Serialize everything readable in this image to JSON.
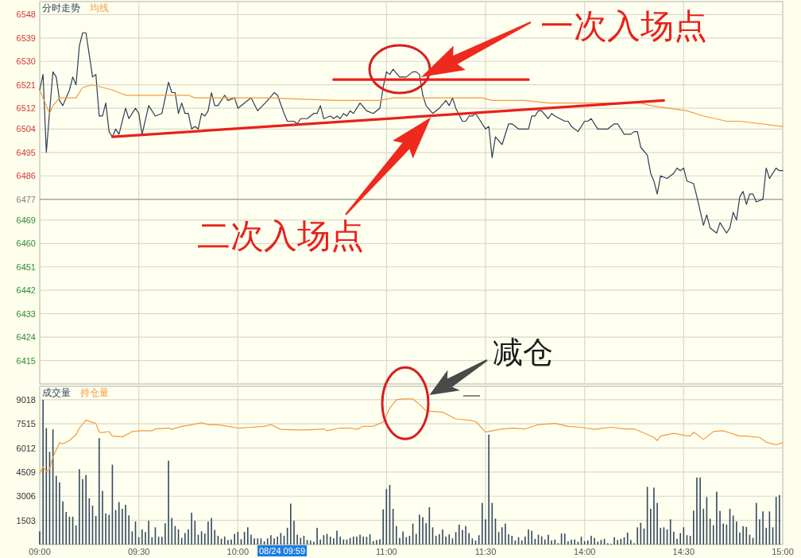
{
  "chart_data": [
    {
      "type": "line",
      "categories": [
        null,
        null,
        null,
        null,
        null,
        null,
        null,
        null,
        null,
        null,
        null,
        null,
        null,
        null,
        null,
        null,
        null,
        null,
        null,
        null,
        null,
        null,
        null,
        null,
        null,
        null,
        null,
        null,
        null,
        null,
        null,
        null,
        null,
        null,
        null,
        null,
        null,
        null,
        null,
        null,
        null,
        null,
        null,
        null,
        null,
        null,
        null,
        null,
        null,
        null,
        null,
        null,
        null,
        null,
        null,
        null,
        null,
        null,
        null,
        null,
        null,
        null,
        null,
        null,
        null,
        null,
        null,
        null,
        null,
        null,
        null,
        null,
        null,
        null,
        null,
        null,
        null,
        null,
        null,
        null,
        null,
        null,
        null,
        null,
        null,
        null,
        null,
        null,
        null,
        null,
        null,
        null,
        null,
        null,
        null,
        null,
        null,
        null,
        null,
        null,
        null,
        null,
        null,
        null,
        null,
        null,
        null,
        null,
        null,
        null,
        null,
        null,
        null,
        null,
        null,
        null,
        null,
        null,
        null,
        null,
        null,
        null,
        null,
        null,
        null,
        null,
        null,
        null,
        null,
        null,
        null,
        null,
        null,
        null,
        null,
        null,
        null,
        null,
        null,
        null,
        null,
        null,
        null,
        null,
        null,
        null,
        null,
        null,
        null,
        null,
        null,
        null,
        null,
        null,
        null,
        null,
        null,
        null,
        null,
        null,
        null,
        null,
        null,
        null,
        null,
        null,
        null,
        null,
        null,
        null,
        null,
        null,
        null,
        null,
        null,
        null,
        null,
        null,
        null,
        null,
        null,
        null,
        null,
        null,
        null,
        null,
        null,
        null,
        null,
        null,
        null,
        null,
        null,
        null,
        null,
        null,
        null,
        null,
        null,
        null,
        null,
        null,
        null,
        null,
        null,
        null,
        null,
        null,
        null,
        null,
        null,
        null,
        null,
        null,
        null,
        null,
        null,
        null,
        null,
        null,
        null,
        null,
        null,
        null,
        null,
        null
      ],
      "ylim": [
        6406,
        6553
      ],
      "yticks": [
        6415,
        6424,
        6433,
        6442,
        6451,
        6460,
        6469,
        6477,
        6486,
        6495,
        6504,
        6512,
        6521,
        6530,
        6539,
        6548
      ],
      "tick_labels": "y",
      "grid": true,
      "legend": "top left",
      "ref_lines": [
        {
          "axis": "y",
          "value": 6477,
          "color": "#a8a8a0"
        }
      ],
      "series": [
        {
          "name": "分时走势",
          "color": "#2c3e55",
          "values": [
            6519,
            6525,
            6495,
            6511,
            6526,
            6524,
            6515,
            6513,
            null,
            6519,
            6524,
            6521,
            6536,
            6541,
            6541,
            null,
            6524,
            6525,
            6509,
            6509,
            6514,
            6503,
            6501,
            6504,
            6502,
            null,
            6512,
            6508,
            null,
            6512,
            6510,
            6502,
            null,
            6513,
            null,
            6509,
            null,
            6510,
            null,
            6522,
            6518,
            6518,
            6510,
            6514,
            6510,
            6510,
            6504,
            6505,
            6504,
            6510,
            6509,
            6511,
            6518,
            6513,
            6513,
            null,
            6517,
            6515,
            null,
            6516,
            6512,
            null,
            null,
            null,
            6516,
            null,
            6511,
            null,
            null,
            6515,
            null,
            6518,
            6517,
            null,
            6510,
            6507,
            null,
            6507,
            6506,
            6508,
            null,
            6508,
            null,
            6510,
            6510,
            6513,
            6508,
            null,
            6509,
            6508,
            6509,
            6508,
            6510,
            6509,
            6511,
            6510,
            null,
            6514,
            null,
            6511,
            null,
            6510,
            null,
            6512,
            6520,
            6526,
            6525,
            6527,
            null,
            6524,
            6524,
            6524,
            null,
            6526,
            6526,
            6525,
            6517,
            6513,
            null,
            6510,
            null,
            6512,
            null,
            6515,
            6513,
            6516,
            6512,
            null,
            6507,
            6507,
            6509,
            6509,
            6510,
            6508,
            null,
            6504,
            6505,
            6493,
            6501,
            null,
            6498,
            null,
            6506,
            6506,
            null,
            6504,
            null,
            6504,
            6504,
            6509,
            6509,
            6511,
            6511,
            null,
            6508,
            6510,
            6509,
            null,
            null,
            6507,
            6507,
            6505,
            null,
            6503,
            null,
            6507,
            6507,
            6508,
            null,
            6504,
            6504,
            null,
            6504,
            null,
            6506,
            6506,
            null,
            6502,
            null,
            6502,
            6503,
            6503,
            6497,
            null,
            6494,
            6487,
            6484,
            6479,
            6486,
            null,
            6485,
            null,
            6487,
            6489,
            6488,
            6489,
            6484,
            null,
            6483,
            6478,
            null,
            6467,
            6471,
            6466,
            null,
            6464,
            6468,
            null,
            6464,
            6466,
            6472,
            6469,
            6478,
            6480,
            6475,
            6479,
            6479,
            6476,
            null,
            6477,
            6489,
            6485,
            null,
            6489,
            6488,
            6488
          ]
        },
        {
          "name": "均线",
          "color": "#f39a3d",
          "values": [
            6519,
            null,
            6513,
            6510,
            6513,
            null,
            6516,
            null,
            null,
            null,
            null,
            6516,
            null,
            6520,
            null,
            null,
            6521,
            null,
            null,
            6520,
            null,
            null,
            6519,
            null,
            null,
            null,
            6517,
            null,
            null,
            null,
            null,
            null,
            null,
            null,
            null,
            6517,
            null,
            null,
            null,
            null,
            null,
            null,
            null,
            null,
            null,
            6517,
            null,
            6516,
            null,
            null,
            null,
            null,
            null,
            null,
            null,
            null,
            null,
            null,
            null,
            null,
            null,
            null,
            null,
            null,
            null,
            null,
            null,
            null,
            null,
            6516,
            null,
            null,
            null,
            null,
            null,
            null,
            null,
            null,
            null,
            null,
            null,
            null,
            null,
            null,
            null,
            null,
            null,
            null,
            null,
            null,
            6515,
            null,
            null,
            null,
            null,
            null,
            null,
            null,
            null,
            null,
            null,
            null,
            null,
            6515,
            null,
            null,
            null,
            6516,
            null,
            null,
            null,
            null,
            null,
            null,
            6516,
            null,
            null,
            null,
            null,
            null,
            null,
            null,
            null,
            null,
            null,
            null,
            null,
            null,
            null,
            null,
            null,
            null,
            null,
            null,
            6516,
            null,
            null,
            6515,
            null,
            null,
            null,
            null,
            null,
            null,
            null,
            null,
            null,
            6515,
            null,
            null,
            null,
            null,
            null,
            null,
            6514,
            null,
            null,
            null,
            null,
            null,
            null,
            null,
            null,
            null,
            null,
            null,
            null,
            null,
            null,
            null,
            null,
            null,
            null,
            null,
            null,
            null,
            null,
            null,
            null,
            null,
            null,
            null,
            6514,
            null,
            null,
            6513,
            null,
            null,
            null,
            null,
            null,
            null,
            null,
            null,
            null,
            null,
            6511,
            null,
            null,
            null,
            null,
            6509,
            null,
            null,
            null,
            null,
            null,
            null,
            6507,
            null,
            null,
            null,
            6507,
            null,
            null,
            null,
            null,
            null,
            null,
            null,
            null,
            null,
            null,
            null,
            null,
            6505
          ]
        },
        {
          "type": "line",
          "color": "#e8211a",
          "values": [
            null,
            null,
            null,
            null,
            null,
            null,
            null,
            null,
            null,
            null,
            null,
            null,
            null,
            null,
            null,
            null,
            null,
            null,
            null,
            null,
            null,
            null,
            null,
            null,
            null,
            null,
            null,
            null,
            null,
            null,
            null,
            null,
            null,
            null,
            null,
            null,
            null,
            null,
            null,
            null,
            null,
            null,
            null,
            null,
            null,
            null,
            null,
            null,
            null,
            null,
            null,
            null,
            null,
            null,
            null,
            null,
            null,
            null,
            null,
            null,
            null,
            null,
            null,
            null,
            null,
            null,
            null,
            null,
            null,
            null,
            null,
            null,
            null,
            null,
            null,
            null,
            null,
            null,
            null,
            null,
            null,
            null,
            null,
            null,
            null,
            null,
            null,
            null,
            null,
            6523,
            null,
            null,
            null,
            null,
            null,
            null,
            null,
            null,
            null,
            null,
            null,
            null,
            null,
            null,
            null,
            null,
            null,
            null,
            null,
            null,
            null,
            null,
            null,
            null,
            null,
            null,
            null,
            null,
            null,
            null,
            null,
            null,
            null,
            null,
            null,
            null,
            null,
            null,
            null,
            null,
            null,
            null,
            null,
            null,
            null,
            null,
            null,
            null,
            null,
            null,
            null,
            null,
            null,
            null,
            null,
            null,
            null,
            null,
            6523,
            null,
            null,
            null,
            null,
            null,
            null,
            null,
            null,
            null,
            null,
            null,
            null,
            null,
            null,
            null,
            null,
            null,
            null,
            null,
            null,
            null,
            null,
            null,
            null,
            null,
            null,
            null,
            null,
            null,
            null,
            null,
            null,
            null,
            null,
            null,
            null,
            null,
            null,
            null,
            null,
            null,
            null,
            null,
            null,
            null,
            null,
            null,
            null,
            null,
            null,
            null,
            null,
            null,
            null,
            null,
            null,
            null,
            null,
            null,
            null,
            null,
            null,
            null,
            null,
            null,
            null,
            null,
            null,
            null,
            null,
            null,
            null,
            null,
            null,
            null,
            null,
            null
          ]
        },
        {
          "type": "line",
          "color": "#e8211a",
          "values": [
            null,
            null,
            null,
            null,
            null,
            null,
            null,
            null,
            null,
            null,
            null,
            null,
            null,
            null,
            null,
            null,
            null,
            null,
            null,
            null,
            null,
            null,
            6501,
            null,
            null,
            null,
            null,
            null,
            null,
            null,
            null,
            null,
            null,
            null,
            null,
            null,
            null,
            null,
            null,
            null,
            null,
            null,
            null,
            null,
            null,
            null,
            null,
            null,
            null,
            null,
            null,
            null,
            null,
            null,
            null,
            null,
            null,
            null,
            null,
            null,
            null,
            null,
            null,
            null,
            null,
            null,
            null,
            null,
            null,
            null,
            null,
            null,
            null,
            null,
            null,
            null,
            null,
            null,
            null,
            null,
            null,
            null,
            null,
            null,
            null,
            null,
            null,
            null,
            null,
            null,
            null,
            null,
            null,
            null,
            null,
            null,
            null,
            null,
            null,
            null,
            null,
            null,
            null,
            null,
            null,
            null,
            null,
            null,
            null,
            null,
            null,
            null,
            null,
            null,
            null,
            null,
            null,
            null,
            null,
            null,
            null,
            null,
            null,
            null,
            null,
            null,
            null,
            null,
            null,
            null,
            null,
            null,
            null,
            null,
            null,
            null,
            null,
            null,
            null,
            null,
            null,
            null,
            null,
            null,
            null,
            null,
            null,
            null,
            null,
            null,
            null,
            null,
            null,
            null,
            null,
            null,
            null,
            null,
            null,
            null,
            null,
            null,
            null,
            null,
            null,
            null,
            null,
            null,
            null,
            null,
            null,
            null,
            null,
            null,
            null,
            null,
            null,
            null,
            null,
            null,
            null,
            null,
            null,
            null,
            null,
            null,
            null,
            null,
            null,
            6515,
            null,
            null,
            null,
            null,
            null,
            null,
            null,
            null,
            null,
            null,
            null,
            null,
            null,
            null,
            null,
            null,
            null,
            null,
            null,
            null,
            null,
            null,
            null,
            null,
            null,
            null,
            null,
            null,
            null,
            null,
            null,
            null,
            null,
            null,
            null,
            null
          ]
        }
      ],
      "annotations": [
        "一次入场点",
        "二次入场点"
      ]
    },
    {
      "type": "bar",
      "categories": [
        "09:00",
        null,
        null,
        null,
        null,
        null,
        null,
        null,
        null,
        null,
        null,
        null,
        null,
        null,
        null,
        null,
        null,
        null,
        null,
        null,
        null,
        null,
        null,
        null,
        null,
        null,
        null,
        null,
        null,
        null,
        "09:30",
        null,
        null,
        null,
        null,
        null,
        null,
        null,
        null,
        null,
        null,
        null,
        null,
        null,
        null,
        null,
        null,
        null,
        null,
        null,
        null,
        null,
        null,
        null,
        null,
        null,
        null,
        null,
        null,
        null,
        "10:00",
        null,
        null,
        null,
        null,
        null,
        null,
        null,
        null,
        null,
        null,
        null,
        null,
        null,
        null,
        null,
        null,
        null,
        null,
        null,
        null,
        null,
        null,
        null,
        null,
        null,
        null,
        null,
        null,
        null,
        null,
        null,
        null,
        null,
        null,
        null,
        null,
        null,
        null,
        null,
        null,
        null,
        null,
        null,
        null,
        "11:00",
        null,
        null,
        null,
        null,
        null,
        null,
        null,
        null,
        null,
        null,
        null,
        null,
        null,
        null,
        null,
        null,
        null,
        null,
        null,
        null,
        null,
        null,
        null,
        null,
        null,
        null,
        null,
        null,
        null,
        "11:30",
        null,
        null,
        null,
        null,
        null,
        null,
        null,
        null,
        null,
        null,
        null,
        null,
        null,
        null,
        null,
        null,
        null,
        null,
        null,
        null,
        null,
        null,
        null,
        null,
        null,
        null,
        null,
        null,
        null,
        "14:00",
        null,
        null,
        null,
        null,
        null,
        null,
        null,
        null,
        null,
        null,
        null,
        null,
        null,
        null,
        null,
        null,
        null,
        null,
        null,
        null,
        null,
        null,
        null,
        null,
        null,
        null,
        null,
        null,
        null,
        "14:30",
        null,
        null,
        null,
        null,
        null,
        null,
        null,
        null,
        null,
        null,
        null,
        null,
        null,
        null,
        null,
        null,
        null,
        null,
        null,
        null,
        null,
        null,
        null,
        null,
        null,
        null,
        null,
        null,
        null,
        "15:00"
      ],
      "ylim": [
        0,
        9850
      ],
      "yticks": [
        1503,
        3006,
        4509,
        6012,
        7515,
        9018
      ],
      "grid": true,
      "legend": "top left",
      "series": [
        {
          "name": "成交量",
          "color": "#34495e",
          "values": [
            820,
            9010,
            7250,
            5770,
            7170,
            4280,
            3870,
            2690,
            2030,
            1730,
            1730,
            1190,
            4690,
            4070,
            4330,
            2880,
            2420,
            1780,
            6620,
            3340,
            1930,
            1850,
            4970,
            2140,
            2640,
            2220,
            2470,
            1810,
            820,
            1430,
            450,
            940,
            770,
            1480,
            450,
            1070,
            480,
            480,
            1320,
            5220,
            1650,
            1150,
            940,
            410,
            710,
            940,
            1980,
            1480,
            610,
            820,
            680,
            1430,
            1650,
            910,
            540,
            360,
            490,
            280,
            310,
            660,
            790,
            330,
            790,
            1070,
            610,
            380,
            380,
            380,
            200,
            380,
            580,
            380,
            490,
            710,
            540,
            1040,
            2550,
            1480,
            610,
            410,
            540,
            280,
            250,
            170,
            1040,
            310,
            580,
            660,
            490,
            380,
            860,
            490,
            310,
            310,
            410,
            490,
            490,
            610,
            490,
            480,
            640,
            210,
            280,
            330,
            2190,
            3460,
            3710,
            2220,
            1150,
            410,
            810,
            450,
            540,
            1300,
            660,
            1860,
            1700,
            1330,
            2320,
            1070,
            540,
            640,
            940,
            490,
            630,
            380,
            770,
            1240,
            910,
            1150,
            710,
            380,
            250,
            580,
            2590,
            1570,
            6840,
            2590,
            1610,
            770,
            1070,
            1300,
            640,
            540,
            250,
            450,
            250,
            490,
            940,
            860,
            350,
            610,
            510,
            310,
            610,
            250,
            310,
            80,
            680,
            680,
            200,
            300,
            310,
            170,
            480,
            210,
            250,
            540,
            410,
            180,
            280,
            350,
            80,
            50,
            450,
            280,
            350,
            450,
            740,
            280,
            80,
            1070,
            1350,
            990,
            3590,
            2220,
            3540,
            2590,
            1040,
            1070,
            940,
            1570,
            790,
            350,
            710,
            1070,
            580,
            540,
            2110,
            4170,
            4170,
            2220,
            2950,
            1610,
            1200,
            3290,
            2090,
            1300,
            1240,
            2220,
            1810,
            1430,
            740,
            1140,
            1100,
            610,
            410,
            2590,
            1570,
            2060,
            1040,
            2060,
            1070,
            2970,
            3080,
            null
          ]
        },
        {
          "name": "持仓量",
          "type": "line",
          "color": "#f39a3d",
          "values": [
            4450,
            4830,
            4560,
            4690,
            5440,
            null,
            6340,
            6260,
            null,
            6470,
            null,
            6840,
            7250,
            null,
            7740,
            null,
            null,
            7530,
            7000,
            6970,
            null,
            7030,
            6750,
            null,
            null,
            6700,
            null,
            null,
            7030,
            null,
            null,
            7080,
            null,
            null,
            7080,
            7200,
            null,
            null,
            null,
            7250,
            7170,
            null,
            null,
            7360,
            null,
            null,
            7460,
            null,
            null,
            7580,
            null,
            7460,
            null,
            null,
            7460,
            null,
            null,
            7360,
            null,
            null,
            7250,
            null,
            null,
            null,
            7300,
            null,
            null,
            null,
            7360,
            null,
            7460,
            null,
            null,
            7170,
            null,
            null,
            null,
            null,
            7130,
            null,
            null,
            7130,
            null,
            null,
            null,
            null,
            7200,
            7080,
            null,
            null,
            null,
            7250,
            null,
            null,
            7250,
            null,
            7170,
            null,
            7360,
            null,
            null,
            7360,
            null,
            null,
            7630,
            null,
            8480,
            null,
            9010,
            null,
            9060,
            null,
            null,
            9060,
            null,
            8730,
            null,
            8320,
            null,
            null,
            null,
            null,
            8240,
            null,
            null,
            null,
            7820,
            null,
            null,
            null,
            7740,
            null,
            7660,
            null,
            null,
            7000,
            null,
            null,
            7120,
            null,
            7200,
            null,
            null,
            7250,
            null,
            null,
            null,
            7200,
            null,
            null,
            null,
            7460,
            null,
            null,
            null,
            null,
            7540,
            null,
            null,
            null,
            7360,
            null,
            null,
            null,
            7300,
            null,
            null,
            null,
            7170,
            null,
            null,
            null,
            null,
            7300,
            null,
            null,
            null,
            7200,
            null,
            null,
            7200,
            null,
            null,
            null,
            null,
            null,
            6670,
            6470,
            6750,
            null,
            null,
            null,
            6920,
            null,
            null,
            6800,
            null,
            6750,
            7000,
            null,
            null,
            6540,
            null,
            null,
            7030,
            null,
            null,
            7080,
            null,
            null,
            null,
            null,
            6750,
            null,
            6750,
            null,
            null,
            null,
            6670,
            null,
            6370,
            null,
            null,
            6210,
            null,
            6340
          ]
        }
      ],
      "annotations": [
        "减仓",
        "08/24 09:59"
      ]
    }
  ]
}
